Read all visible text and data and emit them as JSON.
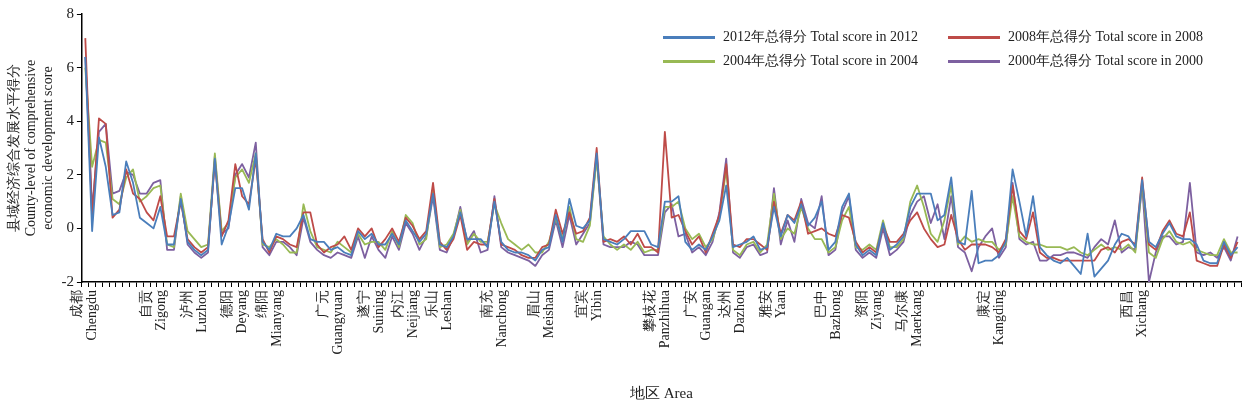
{
  "chart_data": {
    "type": "line",
    "ylabel": "县域经济综合发展水平得分\nCounty-level of comprehensive\neconomic development score",
    "xlabel": "地区 Area",
    "categories": [
      "成都\nChengdu",
      null,
      null,
      null,
      null,
      null,
      null,
      null,
      null,
      null,
      "自贡\nZigong",
      null,
      null,
      null,
      null,
      null,
      "泸州\nLuzhou",
      null,
      null,
      null,
      null,
      null,
      "德阳\nDeyang",
      null,
      null,
      null,
      null,
      "绵阳\nMianyang",
      null,
      null,
      null,
      null,
      null,
      null,
      null,
      null,
      "广元\nGuangyuan",
      null,
      null,
      null,
      null,
      null,
      "遂宁\nSuining",
      null,
      null,
      null,
      null,
      "内江\nNeijiang",
      null,
      null,
      null,
      null,
      "乐山\nLeshan",
      null,
      null,
      null,
      null,
      null,
      null,
      null,
      "南充\nNanchong",
      null,
      null,
      null,
      null,
      null,
      null,
      "眉山\nMeishan",
      null,
      null,
      null,
      null,
      null,
      null,
      "宜宾\nYibin",
      null,
      null,
      null,
      null,
      null,
      null,
      null,
      null,
      null,
      "攀枝花\nPanzhihua",
      null,
      null,
      null,
      null,
      null,
      "广安\nGuangan",
      null,
      null,
      null,
      null,
      "达州\nDazhou",
      null,
      null,
      null,
      null,
      null,
      "雅安\nYaan",
      null,
      null,
      null,
      null,
      null,
      null,
      null,
      "巴中\nBazhong",
      null,
      null,
      null,
      null,
      null,
      "资阳\nZiyang",
      null,
      null,
      null,
      null,
      null,
      "马尔康\nMaerkang",
      null,
      null,
      null,
      null,
      null,
      null,
      null,
      null,
      null,
      null,
      null,
      "康定\nKangding",
      null,
      null,
      null,
      null,
      null,
      null,
      null,
      null,
      null,
      null,
      null,
      null,
      null,
      null,
      null,
      null,
      null,
      null,
      null,
      null,
      "西昌\nXichang",
      null,
      null,
      null,
      null,
      null,
      null,
      null,
      null,
      null,
      null,
      null,
      null,
      null,
      null,
      null
    ],
    "ylim": [
      -2,
      8
    ],
    "yticks": [
      -2,
      0,
      2,
      4,
      6,
      8
    ],
    "grid": false,
    "marker": "none",
    "legend": "top right",
    "series": [
      {
        "name": "2012年总得分 Total score in 2012",
        "color": "#4a7ebb",
        "values": [
          6.4,
          -0.1,
          3.4,
          2.3,
          0.5,
          0.6,
          2.5,
          1.7,
          0.4,
          0.2,
          0.0,
          0.8,
          -0.6,
          -0.6,
          1.1,
          -0.5,
          -0.8,
          -1.0,
          -0.8,
          2.6,
          -0.6,
          0.1,
          1.5,
          1.5,
          0.7,
          2.8,
          -0.5,
          -0.8,
          -0.2,
          -0.3,
          -0.3,
          0.0,
          0.5,
          -0.4,
          -0.5,
          -0.5,
          -0.8,
          -0.7,
          -0.9,
          -1.0,
          -0.1,
          -0.4,
          -0.2,
          -0.6,
          -0.6,
          -0.2,
          -0.6,
          0.3,
          -0.1,
          -0.5,
          -0.2,
          1.3,
          -0.6,
          -0.7,
          -0.3,
          0.6,
          -0.4,
          -0.4,
          -0.4,
          -0.7,
          1.0,
          -0.5,
          -0.8,
          -0.9,
          -0.9,
          -1.0,
          -1.2,
          -0.8,
          -0.7,
          0.5,
          -0.5,
          1.1,
          0.1,
          0.0,
          0.3,
          2.8,
          -0.4,
          -0.5,
          -0.6,
          -0.4,
          -0.1,
          -0.1,
          -0.1,
          -0.6,
          -0.7,
          1.0,
          1.0,
          1.2,
          -0.5,
          -0.8,
          -0.6,
          -0.8,
          -0.3,
          0.3,
          1.6,
          -0.7,
          -0.6,
          -0.5,
          -0.3,
          -0.8,
          -0.7,
          0.8,
          -0.3,
          0.5,
          0.2,
          0.9,
          0.1,
          0.4,
          1.0,
          -0.8,
          -0.5,
          0.8,
          1.3,
          -0.6,
          -1.0,
          -0.8,
          -1.0,
          0.2,
          -0.8,
          -0.6,
          -0.3,
          0.8,
          1.3,
          1.3,
          1.3,
          0.3,
          0.5,
          1.9,
          -0.5,
          -0.6,
          1.4,
          -1.3,
          -1.2,
          -1.2,
          -1.0,
          -0.5,
          2.2,
          1.0,
          -0.3,
          1.2,
          -0.7,
          -1.0,
          -1.2,
          -1.3,
          -1.1,
          -1.4,
          -1.7,
          -0.2,
          -1.8,
          -1.5,
          -1.2,
          -0.6,
          -0.2,
          -0.3,
          -0.7,
          1.8,
          -0.5,
          -0.7,
          -0.2,
          0.2,
          -0.3,
          -0.4,
          -0.4,
          -0.6,
          -1.2,
          -1.3,
          -1.3,
          -0.5,
          -1.0,
          -0.7
        ]
      },
      {
        "name": "2008年总得分 Total score in 2008",
        "color": "#be4b48",
        "values": [
          7.1,
          0.4,
          4.1,
          3.9,
          0.4,
          0.7,
          2.2,
          1.3,
          1.1,
          0.6,
          0.3,
          1.2,
          -0.3,
          -0.3,
          1.0,
          -0.4,
          -0.7,
          -0.9,
          -0.7,
          2.5,
          -0.3,
          0.3,
          2.4,
          1.2,
          0.9,
          2.6,
          -0.4,
          -0.9,
          -0.3,
          -0.4,
          -0.6,
          -0.7,
          0.6,
          0.6,
          -0.6,
          -0.9,
          -0.7,
          -0.6,
          -0.3,
          -0.8,
          0.0,
          -0.3,
          0.0,
          -0.7,
          -0.4,
          0.0,
          -0.5,
          0.4,
          0.1,
          -0.4,
          -0.1,
          1.7,
          -0.5,
          -0.8,
          -0.4,
          0.5,
          -0.8,
          -0.5,
          -0.6,
          -0.6,
          1.1,
          -0.6,
          -0.7,
          -0.8,
          -1.0,
          -1.1,
          -1.1,
          -0.7,
          -0.6,
          0.7,
          -0.2,
          0.6,
          -0.2,
          -0.1,
          0.4,
          3.0,
          -0.5,
          -0.4,
          -0.5,
          -0.3,
          -0.6,
          -0.2,
          -0.7,
          -0.7,
          -0.9,
          3.6,
          0.4,
          0.5,
          -0.1,
          -0.6,
          -0.3,
          -0.9,
          -0.2,
          0.5,
          2.4,
          -0.6,
          -0.7,
          -0.4,
          -0.4,
          -0.6,
          -0.8,
          1.0,
          -0.2,
          0.5,
          0.3,
          1.0,
          -0.2,
          -0.1,
          0.0,
          -0.2,
          -0.3,
          0.5,
          0.4,
          -0.5,
          -0.9,
          -0.7,
          -0.9,
          0.1,
          -0.5,
          -0.5,
          -0.2,
          0.3,
          0.6,
          0.0,
          -0.4,
          -0.7,
          -0.6,
          0.5,
          -0.4,
          -0.8,
          -0.6,
          -0.6,
          -0.6,
          -0.7,
          -0.9,
          -0.4,
          1.6,
          -0.1,
          -0.4,
          0.6,
          -0.9,
          -1.1,
          -1.1,
          -1.2,
          -1.2,
          -1.2,
          -1.2,
          -1.2,
          -1.2,
          -0.8,
          -0.7,
          -0.9,
          -0.5,
          -0.4,
          -0.6,
          1.9,
          -0.6,
          -0.8,
          -0.1,
          0.3,
          -0.2,
          -0.3,
          0.6,
          -1.2,
          -1.3,
          -1.4,
          -1.4,
          -0.6,
          -1.1,
          -0.5
        ]
      },
      {
        "name": "2004年总得分 Total score in 2004",
        "color": "#98b954",
        "values": [
          6.0,
          2.3,
          3.3,
          3.2,
          1.1,
          0.9,
          1.9,
          2.2,
          1.0,
          1.2,
          1.5,
          1.6,
          -0.6,
          -0.7,
          1.3,
          -0.1,
          -0.4,
          -0.7,
          -0.6,
          2.8,
          -0.1,
          0.2,
          1.9,
          2.2,
          1.7,
          2.8,
          -0.6,
          -0.7,
          -0.4,
          -0.6,
          -0.9,
          -0.9,
          0.9,
          -0.1,
          -0.7,
          -0.8,
          -0.9,
          -0.5,
          -0.7,
          -0.9,
          -0.2,
          -0.6,
          -0.5,
          -0.5,
          -0.8,
          -0.1,
          -0.7,
          0.5,
          0.2,
          -0.6,
          -0.4,
          1.5,
          -0.7,
          -0.6,
          -0.2,
          0.7,
          -0.6,
          -0.2,
          -0.5,
          -0.5,
          0.9,
          0.2,
          -0.4,
          -0.6,
          -0.8,
          -0.6,
          -0.9,
          -0.9,
          -0.5,
          0.4,
          -0.4,
          0.8,
          -0.4,
          -0.5,
          0.1,
          2.6,
          -0.3,
          -0.6,
          -0.8,
          -0.6,
          -0.8,
          -0.5,
          -0.9,
          -0.8,
          -0.8,
          0.8,
          0.8,
          1.0,
          0.0,
          -0.4,
          -0.2,
          -0.7,
          -0.4,
          0.4,
          2.2,
          -0.8,
          -1.0,
          -0.6,
          -0.5,
          -0.9,
          -0.6,
          1.3,
          -0.4,
          0.0,
          -0.2,
          0.8,
          0.0,
          -0.4,
          -0.4,
          -0.9,
          -0.7,
          0.3,
          0.8,
          -0.7,
          -0.8,
          -0.6,
          -0.8,
          0.3,
          -0.7,
          -0.7,
          -0.4,
          1.0,
          1.6,
          0.8,
          -0.2,
          -0.5,
          0.3,
          1.6,
          -0.6,
          -0.3,
          -0.5,
          -0.4,
          -0.5,
          -0.5,
          -0.8,
          -0.6,
          1.2,
          -0.3,
          -0.5,
          -0.6,
          -0.6,
          -0.7,
          -0.7,
          -0.7,
          -0.8,
          -0.7,
          -0.9,
          -1.0,
          -0.8,
          -0.6,
          -0.8,
          -0.7,
          -0.8,
          -0.6,
          -0.9,
          1.7,
          -0.9,
          -1.1,
          -0.4,
          -0.1,
          -0.5,
          -0.6,
          -0.5,
          -0.8,
          -0.9,
          -1.0,
          -1.0,
          -0.4,
          -0.9,
          -0.9
        ]
      },
      {
        "name": "2000年总得分 Total score in 2000",
        "color": "#7d60a0",
        "values": [
          6.4,
          0.7,
          3.6,
          3.9,
          1.3,
          1.4,
          2.1,
          2.0,
          1.3,
          1.3,
          1.7,
          1.8,
          -0.8,
          -0.8,
          1.2,
          -0.6,
          -0.9,
          -1.1,
          -0.9,
          2.7,
          -0.2,
          0.0,
          2.0,
          2.4,
          1.9,
          3.2,
          -0.7,
          -1.0,
          -0.5,
          -0.5,
          -0.7,
          -1.0,
          0.4,
          -0.5,
          -0.8,
          -1.0,
          -1.1,
          -0.9,
          -1.0,
          -1.1,
          -0.3,
          -1.1,
          -0.3,
          -0.8,
          -1.1,
          -0.3,
          -0.8,
          0.2,
          -0.2,
          -0.8,
          -0.3,
          1.2,
          -0.8,
          -0.9,
          -0.3,
          0.8,
          -0.5,
          -0.1,
          -0.9,
          -0.8,
          1.2,
          -0.7,
          -0.9,
          -1.0,
          -1.1,
          -1.2,
          -1.4,
          -1.0,
          -0.8,
          0.3,
          -0.7,
          0.5,
          -0.6,
          -0.2,
          0.2,
          2.7,
          -0.6,
          -0.7,
          -0.7,
          -0.7,
          -0.5,
          -0.6,
          -1.0,
          -1.0,
          -1.0,
          0.6,
          0.9,
          -0.3,
          -0.2,
          -0.9,
          -0.7,
          -1.0,
          -0.5,
          0.6,
          2.6,
          -0.9,
          -1.1,
          -0.7,
          -0.6,
          -1.0,
          -0.9,
          1.5,
          -0.6,
          0.3,
          -0.5,
          1.1,
          0.2,
          0.0,
          1.2,
          -1.0,
          -0.8,
          0.6,
          1.2,
          -0.8,
          -1.1,
          -0.9,
          -1.1,
          0.0,
          -1.0,
          -0.8,
          -0.5,
          0.5,
          1.0,
          1.2,
          0.2,
          0.9,
          -0.4,
          1.2,
          -0.7,
          -0.9,
          -1.6,
          -0.7,
          -0.3,
          0.0,
          -1.1,
          -0.7,
          1.7,
          -0.4,
          -0.6,
          -0.5,
          -1.2,
          -1.2,
          -1.0,
          -1.0,
          -0.9,
          -0.9,
          -1.0,
          -1.1,
          -0.7,
          -0.4,
          -0.6,
          0.3,
          -0.9,
          -0.7,
          -0.8,
          1.6,
          -2.0,
          -0.9,
          -0.3,
          -0.3,
          -0.6,
          -0.5,
          1.7,
          -0.9,
          -1.0,
          -0.9,
          -1.1,
          -0.7,
          -1.2,
          -0.3
        ]
      }
    ]
  }
}
